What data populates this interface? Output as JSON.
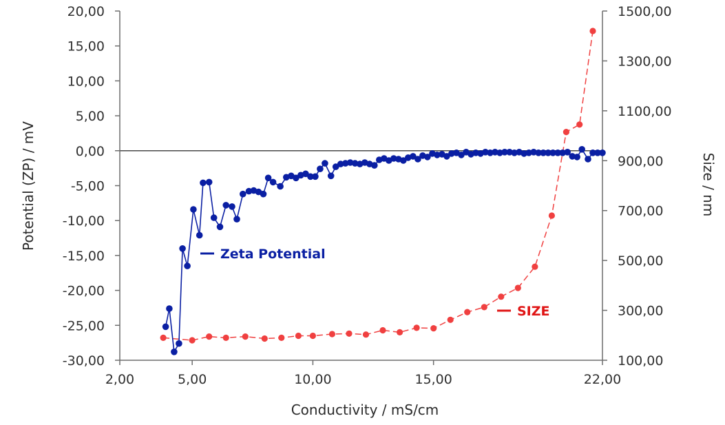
{
  "chart_data": {
    "type": "line",
    "xlabel": "Conductivity / mS/cm",
    "ylabel": "Potential (ZP) / mV",
    "y2label": "Size / nm",
    "xlim": [
      2,
      22
    ],
    "ylim": [
      -30,
      20
    ],
    "y2lim": [
      100,
      1500
    ],
    "x_ticks": [
      "2,00",
      "5,00",
      "10,00",
      "15,00",
      "22,00"
    ],
    "x_tick_values": [
      2,
      5,
      10,
      15,
      22
    ],
    "y_ticks": [
      "20,00",
      "15,00",
      "10,00",
      "5,00",
      "0,00",
      "-5,00",
      "-10,00",
      "-15,00",
      "-20,00",
      "-25,00",
      "-30,00"
    ],
    "y_tick_values": [
      20,
      15,
      10,
      5,
      0,
      -5,
      -10,
      -15,
      -20,
      -25,
      -30
    ],
    "y2_ticks": [
      "1500,00",
      "1300,00",
      "1100,00",
      "900,00",
      "700,00",
      "500,00",
      "300,00",
      "100,00"
    ],
    "y2_tick_values": [
      1500,
      1300,
      1100,
      900,
      700,
      500,
      300,
      100
    ],
    "reference_line_y": 0,
    "legend_placement": "inline",
    "series": [
      {
        "name": "Zeta Potential",
        "axis": "left",
        "color": "#0a1fa3",
        "style": "solid",
        "points": [
          [
            3.9,
            -25.2
          ],
          [
            4.05,
            -22.6
          ],
          [
            4.25,
            -28.8
          ],
          [
            4.45,
            -27.6
          ],
          [
            4.6,
            -14.0
          ],
          [
            4.8,
            -16.5
          ],
          [
            5.05,
            -8.4
          ],
          [
            5.3,
            -12.1
          ],
          [
            5.45,
            -4.6
          ],
          [
            5.7,
            -4.5
          ],
          [
            5.9,
            -9.6
          ],
          [
            6.15,
            -10.9
          ],
          [
            6.4,
            -7.8
          ],
          [
            6.65,
            -8.0
          ],
          [
            6.85,
            -9.8
          ],
          [
            7.1,
            -6.2
          ],
          [
            7.35,
            -5.8
          ],
          [
            7.55,
            -5.7
          ],
          [
            7.75,
            -5.9
          ],
          [
            7.95,
            -6.2
          ],
          [
            8.15,
            -3.9
          ],
          [
            8.35,
            -4.5
          ],
          [
            8.65,
            -5.1
          ],
          [
            8.9,
            -3.8
          ],
          [
            9.1,
            -3.6
          ],
          [
            9.3,
            -3.9
          ],
          [
            9.5,
            -3.5
          ],
          [
            9.7,
            -3.3
          ],
          [
            9.9,
            -3.7
          ],
          [
            10.1,
            -3.7
          ],
          [
            10.3,
            -2.6
          ],
          [
            10.5,
            -1.8
          ],
          [
            10.75,
            -3.6
          ],
          [
            10.95,
            -2.3
          ],
          [
            11.15,
            -1.9
          ],
          [
            11.35,
            -1.8
          ],
          [
            11.55,
            -1.7
          ],
          [
            11.75,
            -1.8
          ],
          [
            11.95,
            -1.9
          ],
          [
            12.15,
            -1.7
          ],
          [
            12.35,
            -1.9
          ],
          [
            12.55,
            -2.1
          ],
          [
            12.75,
            -1.3
          ],
          [
            12.95,
            -1.1
          ],
          [
            13.15,
            -1.4
          ],
          [
            13.35,
            -1.1
          ],
          [
            13.55,
            -1.2
          ],
          [
            13.75,
            -1.4
          ],
          [
            13.95,
            -1.0
          ],
          [
            14.15,
            -0.8
          ],
          [
            14.35,
            -1.2
          ],
          [
            14.55,
            -0.7
          ],
          [
            14.75,
            -0.9
          ],
          [
            14.95,
            -0.4
          ],
          [
            15.15,
            -0.6
          ],
          [
            15.35,
            -0.5
          ],
          [
            15.55,
            -0.8
          ],
          [
            15.75,
            -0.4
          ],
          [
            15.95,
            -0.3
          ],
          [
            16.15,
            -0.6
          ],
          [
            16.35,
            -0.2
          ],
          [
            16.55,
            -0.5
          ],
          [
            16.75,
            -0.3
          ],
          [
            16.95,
            -0.4
          ],
          [
            17.15,
            -0.2
          ],
          [
            17.35,
            -0.3
          ],
          [
            17.55,
            -0.2
          ],
          [
            17.75,
            -0.3
          ],
          [
            17.95,
            -0.2
          ],
          [
            18.15,
            -0.2
          ],
          [
            18.35,
            -0.3
          ],
          [
            18.55,
            -0.2
          ],
          [
            18.75,
            -0.4
          ],
          [
            18.95,
            -0.3
          ],
          [
            19.15,
            -0.2
          ],
          [
            19.35,
            -0.3
          ],
          [
            19.55,
            -0.3
          ],
          [
            19.75,
            -0.3
          ],
          [
            19.95,
            -0.3
          ],
          [
            20.15,
            -0.3
          ],
          [
            20.35,
            -0.3
          ],
          [
            20.55,
            -0.2
          ],
          [
            20.75,
            -0.8
          ],
          [
            20.95,
            -0.9
          ],
          [
            21.15,
            0.2
          ],
          [
            21.4,
            -1.2
          ],
          [
            21.6,
            -0.3
          ],
          [
            21.8,
            -0.3
          ],
          [
            22.0,
            -0.3
          ]
        ]
      },
      {
        "name": "SIZE",
        "axis": "right",
        "color": "#f04040",
        "style": "dashed",
        "points": [
          [
            3.8,
            190
          ],
          [
            5.0,
            180
          ],
          [
            5.7,
            195
          ],
          [
            6.4,
            190
          ],
          [
            7.2,
            195
          ],
          [
            8.0,
            187
          ],
          [
            8.7,
            190
          ],
          [
            9.4,
            198
          ],
          [
            10.0,
            198
          ],
          [
            10.8,
            205
          ],
          [
            11.5,
            207
          ],
          [
            12.2,
            203
          ],
          [
            12.9,
            220
          ],
          [
            13.6,
            212
          ],
          [
            14.3,
            230
          ],
          [
            15.0,
            228
          ],
          [
            15.7,
            262
          ],
          [
            16.4,
            293
          ],
          [
            17.1,
            313
          ],
          [
            17.8,
            355
          ],
          [
            18.5,
            390
          ],
          [
            19.2,
            475
          ],
          [
            19.9,
            680
          ],
          [
            20.5,
            1015
          ],
          [
            21.05,
            1045
          ],
          [
            21.6,
            1420
          ]
        ]
      }
    ]
  }
}
